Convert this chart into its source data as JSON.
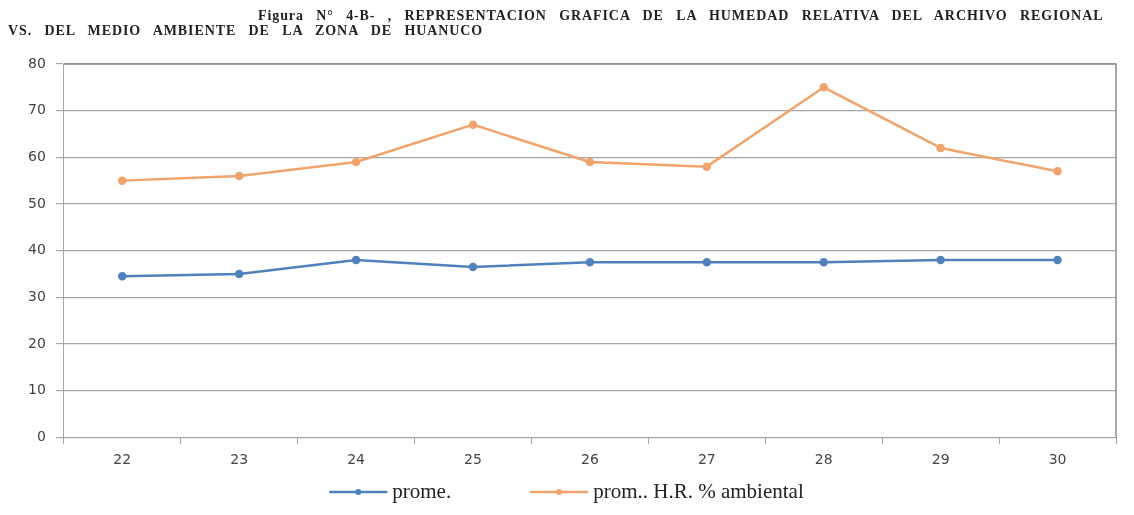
{
  "chart_data": {
    "type": "line",
    "title": "Figura N° 4-B- , REPRESENTACION GRAFICA DE LA HUMEDAD RELATIVA DEL ARCHIVO REGIONAL VS. DEL MEDIO AMBIENTE DE LA ZONA DE HUANUCO",
    "categories": [
      "22",
      "23",
      "24",
      "25",
      "26",
      "27",
      "28",
      "29",
      "30"
    ],
    "series": [
      {
        "name": "prome.",
        "color": "#4f81bd",
        "values": [
          34.5,
          35,
          38,
          36.5,
          37.5,
          37.5,
          37.5,
          38,
          38
        ]
      },
      {
        "name": "prom.. H.R. % ambiental",
        "color": "#f0a46c",
        "values": [
          55,
          56,
          59,
          67,
          59,
          58,
          75,
          62,
          57
        ]
      }
    ],
    "ylim": [
      0,
      80
    ],
    "yticks": [
      0,
      10,
      20,
      30,
      40,
      50,
      60,
      70,
      80
    ],
    "grid": "y",
    "legend": "bottom",
    "marker": "circle",
    "line_style": "solid"
  }
}
